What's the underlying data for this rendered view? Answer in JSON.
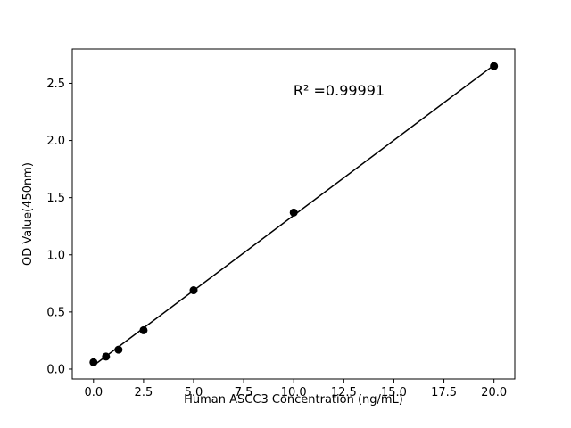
{
  "chart_data": {
    "type": "scatter",
    "title": "",
    "xlabel": "Human ASCC3 Concentration (ng/mL)",
    "ylabel": "OD Value(450nm)",
    "x": [
      0,
      0.625,
      1.25,
      2.5,
      5,
      10,
      20
    ],
    "y": [
      0.06,
      0.11,
      0.17,
      0.34,
      0.69,
      1.37,
      2.65
    ],
    "fit_line": {
      "slope": 0.1314,
      "intercept": 0.031,
      "x_start": 0,
      "x_end": 20
    },
    "annotation": {
      "text": "R² =0.99991"
    },
    "xticks": [
      0,
      2.5,
      5,
      7.5,
      10,
      12.5,
      15,
      17.5,
      20
    ],
    "yticks": [
      0,
      0.5,
      1,
      1.5,
      2,
      2.5
    ],
    "xlim": [
      -1.06,
      21.04
    ],
    "ylim": [
      -0.086,
      2.8
    ],
    "grid": false,
    "legend": false,
    "marker_color": "#000000",
    "line_color": "#000000",
    "axis_color": "#000000",
    "background_color": "#ffffff"
  }
}
